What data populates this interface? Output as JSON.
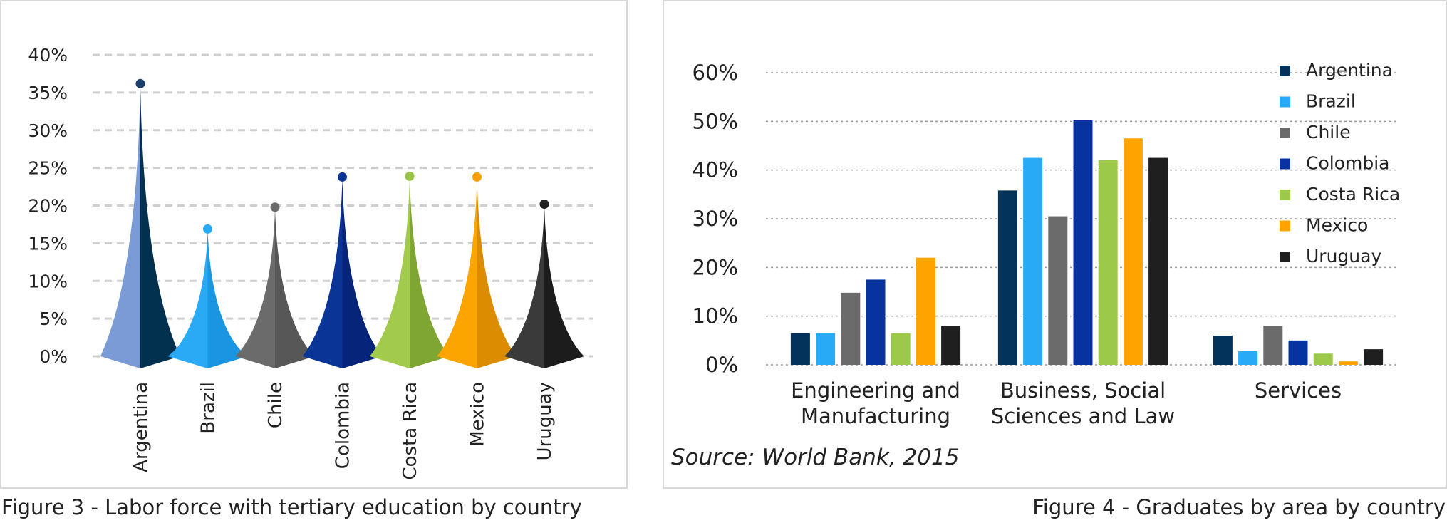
{
  "captions": {
    "left": "Figure 3 - Labor force with tertiary education by country",
    "right": "Figure 4 - Graduates by area by country"
  },
  "source": "Source: World Bank, 2015",
  "chart_data": [
    {
      "type": "bar",
      "style": "spike",
      "title": "",
      "categories": [
        "Argentina",
        "Brazil",
        "Chile",
        "Colombia",
        "Costa Rica",
        "Mexico",
        "Uruguay"
      ],
      "values": [
        36,
        16.7,
        19.6,
        23.6,
        23.7,
        23.6,
        20
      ],
      "colors": [
        "#1a3f6b",
        "#27a9f5",
        "#6a6a6a",
        "#0a3596",
        "#97c348",
        "#f7a000",
        "#222222"
      ],
      "light_colors": [
        "#7a9bd6",
        "#2aaaf5",
        "#6b6b6b",
        "#0a3596",
        "#a2cb4d",
        "#fca400",
        "#3a3a3a"
      ],
      "dark_colors": [
        "#02304f",
        "#1995e1",
        "#575757",
        "#062479",
        "#7fa532",
        "#dc8c00",
        "#1c1c1c"
      ],
      "yticks": [
        "0%",
        "5%",
        "10%",
        "15%",
        "20%",
        "25%",
        "30%",
        "35%",
        "40%"
      ],
      "ylim": [
        0,
        40
      ],
      "grid": true,
      "legend": "none"
    },
    {
      "type": "bar",
      "title": "",
      "categories": [
        "Engineering and Manufacturing",
        "Business, Social Sciences and Law",
        "Services"
      ],
      "category_lines": [
        [
          "Engineering and",
          "Manufacturing"
        ],
        [
          "Business, Social",
          "Sciences and Law"
        ],
        [
          "Services"
        ]
      ],
      "series": [
        {
          "name": "Argentina",
          "color": "#03325a",
          "values": [
            6.5,
            35.8,
            6
          ]
        },
        {
          "name": "Brazil",
          "color": "#28aaf7",
          "values": [
            6.5,
            42.5,
            2.8
          ]
        },
        {
          "name": "Chile",
          "color": "#6b6b6b",
          "values": [
            14.8,
            30.5,
            8
          ]
        },
        {
          "name": "Colombia",
          "color": "#0733a0",
          "values": [
            17.5,
            50.2,
            5
          ]
        },
        {
          "name": "Costa Rica",
          "color": "#9cc94a",
          "values": [
            6.5,
            42,
            2.3
          ]
        },
        {
          "name": "Mexico",
          "color": "#fea400",
          "values": [
            22,
            46.5,
            0.7
          ]
        },
        {
          "name": "Uruguay",
          "color": "#1f1f1f",
          "values": [
            8,
            42.5,
            3.2
          ]
        }
      ],
      "yticks": [
        "0%",
        "10%",
        "20%",
        "30%",
        "40%",
        "50%",
        "60%"
      ],
      "ylim": [
        0,
        60
      ],
      "grid": true,
      "legend": "top-right"
    }
  ]
}
